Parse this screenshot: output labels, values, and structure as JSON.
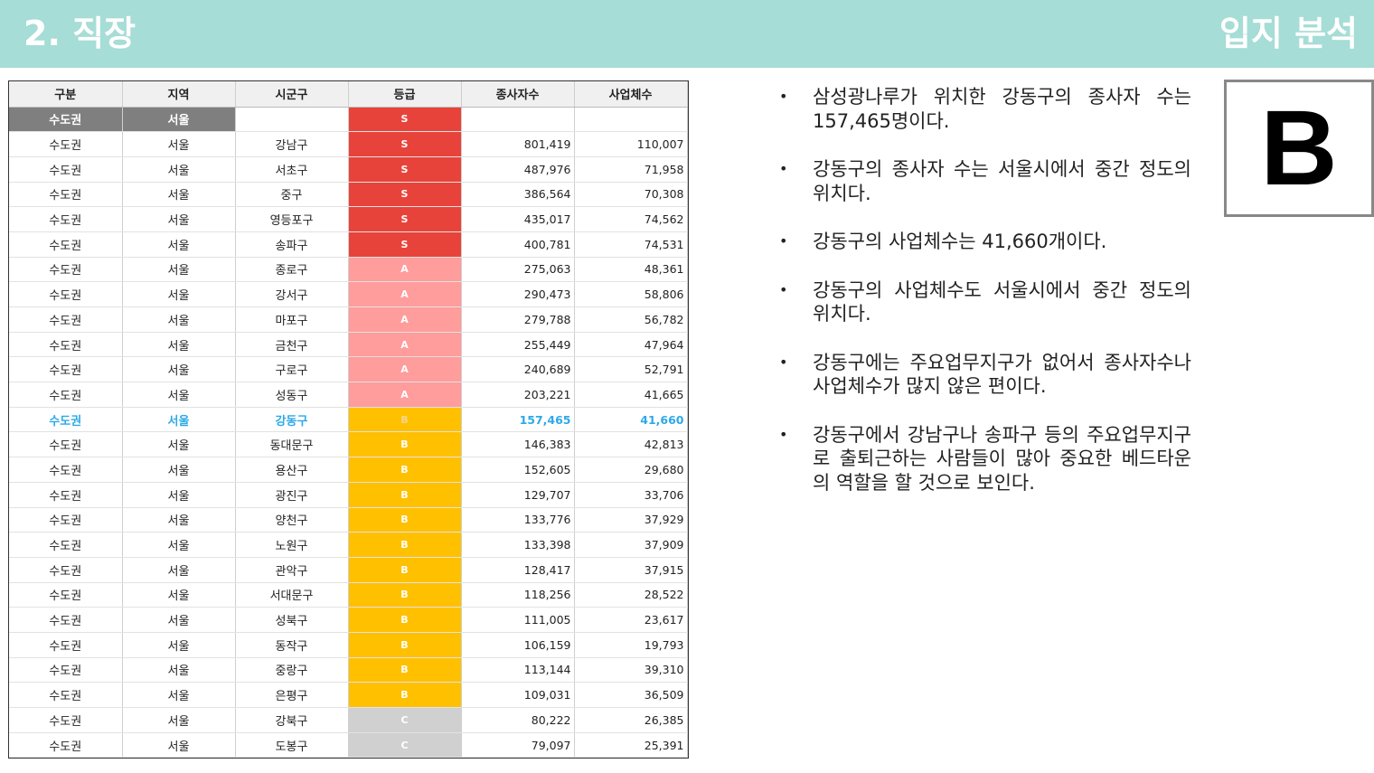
{
  "header": {
    "title": "2. 직장",
    "right_title": "입지 분석"
  },
  "table": {
    "columns": [
      "구분",
      "지역",
      "시군구",
      "등급",
      "종사자수",
      "사업체수"
    ],
    "summary": {
      "category": "수도권",
      "region": "서울",
      "district": "",
      "grade": "S",
      "workers": "",
      "businesses": ""
    },
    "rows": [
      {
        "category": "수도권",
        "region": "서울",
        "district": "강남구",
        "grade": "S",
        "workers": "801,419",
        "businesses": "110,007"
      },
      {
        "category": "수도권",
        "region": "서울",
        "district": "서초구",
        "grade": "S",
        "workers": "487,976",
        "businesses": "71,958"
      },
      {
        "category": "수도권",
        "region": "서울",
        "district": "중구",
        "grade": "S",
        "workers": "386,564",
        "businesses": "70,308"
      },
      {
        "category": "수도권",
        "region": "서울",
        "district": "영등포구",
        "grade": "S",
        "workers": "435,017",
        "businesses": "74,562"
      },
      {
        "category": "수도권",
        "region": "서울",
        "district": "송파구",
        "grade": "S",
        "workers": "400,781",
        "businesses": "74,531"
      },
      {
        "category": "수도권",
        "region": "서울",
        "district": "종로구",
        "grade": "A",
        "workers": "275,063",
        "businesses": "48,361"
      },
      {
        "category": "수도권",
        "region": "서울",
        "district": "강서구",
        "grade": "A",
        "workers": "290,473",
        "businesses": "58,806"
      },
      {
        "category": "수도권",
        "region": "서울",
        "district": "마포구",
        "grade": "A",
        "workers": "279,788",
        "businesses": "56,782"
      },
      {
        "category": "수도권",
        "region": "서울",
        "district": "금천구",
        "grade": "A",
        "workers": "255,449",
        "businesses": "47,964"
      },
      {
        "category": "수도권",
        "region": "서울",
        "district": "구로구",
        "grade": "A",
        "workers": "240,689",
        "businesses": "52,791"
      },
      {
        "category": "수도권",
        "region": "서울",
        "district": "성동구",
        "grade": "A",
        "workers": "203,221",
        "businesses": "41,665"
      },
      {
        "category": "수도권",
        "region": "서울",
        "district": "강동구",
        "grade": "B",
        "workers": "157,465",
        "businesses": "41,660",
        "highlight": true
      },
      {
        "category": "수도권",
        "region": "서울",
        "district": "동대문구",
        "grade": "B",
        "workers": "146,383",
        "businesses": "42,813"
      },
      {
        "category": "수도권",
        "region": "서울",
        "district": "용산구",
        "grade": "B",
        "workers": "152,605",
        "businesses": "29,680"
      },
      {
        "category": "수도권",
        "region": "서울",
        "district": "광진구",
        "grade": "B",
        "workers": "129,707",
        "businesses": "33,706"
      },
      {
        "category": "수도권",
        "region": "서울",
        "district": "양천구",
        "grade": "B",
        "workers": "133,776",
        "businesses": "37,929"
      },
      {
        "category": "수도권",
        "region": "서울",
        "district": "노원구",
        "grade": "B",
        "workers": "133,398",
        "businesses": "37,909"
      },
      {
        "category": "수도권",
        "region": "서울",
        "district": "관악구",
        "grade": "B",
        "workers": "128,417",
        "businesses": "37,915"
      },
      {
        "category": "수도권",
        "region": "서울",
        "district": "서대문구",
        "grade": "B",
        "workers": "118,256",
        "businesses": "28,522"
      },
      {
        "category": "수도권",
        "region": "서울",
        "district": "성북구",
        "grade": "B",
        "workers": "111,005",
        "businesses": "23,617"
      },
      {
        "category": "수도권",
        "region": "서울",
        "district": "동작구",
        "grade": "B",
        "workers": "106,159",
        "businesses": "19,793"
      },
      {
        "category": "수도권",
        "region": "서울",
        "district": "중랑구",
        "grade": "B",
        "workers": "113,144",
        "businesses": "39,310"
      },
      {
        "category": "수도권",
        "region": "서울",
        "district": "은평구",
        "grade": "B",
        "workers": "109,031",
        "businesses": "36,509"
      },
      {
        "category": "수도권",
        "region": "서울",
        "district": "강북구",
        "grade": "C",
        "workers": "80,222",
        "businesses": "26,385"
      },
      {
        "category": "수도권",
        "region": "서울",
        "district": "도봉구",
        "grade": "C",
        "workers": "79,097",
        "businesses": "25,391"
      }
    ]
  },
  "grade_colors": {
    "S": "#e8433a",
    "A": "#ff9c9c",
    "B": "#ffc000",
    "C": "#d0d0d0",
    "highlight_text": "#2ea9e8"
  },
  "bullets": [
    "삼성광나루가 위치한 강동구의 종사자 수는 157,465명이다.",
    "강동구의 종사자 수는 서울시에서 중간 정도의 위치다.",
    "강동구의 사업체수는 41,660개이다.",
    "강동구의 사업체수도 서울시에서 중간 정도의 위치다.",
    "강동구에는 주요업무지구가 없어서 종사자수나 사업체수가 많지 않은 편이다.",
    "강동구에서 강남구나 송파구 등의 주요업무지구로 출퇴근하는 사람들이 많아 중요한 베드타운의 역할을 할 것으로 보인다."
  ],
  "bullet_marker": "•",
  "grade_badge": "B"
}
